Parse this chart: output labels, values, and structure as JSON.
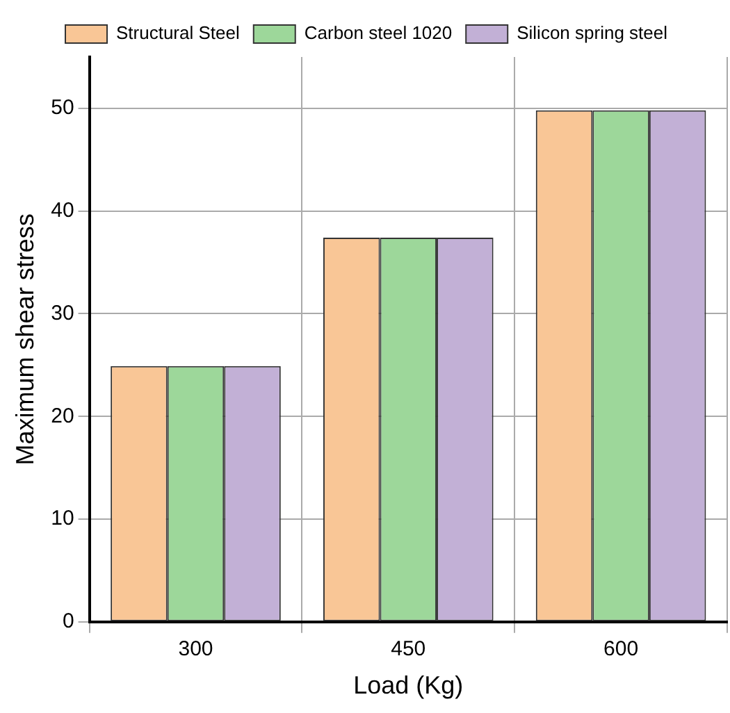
{
  "chart_data": {
    "type": "bar",
    "xlabel": "Load (Kg)",
    "ylabel": "Maximum shear stress",
    "categories": [
      "300",
      "450",
      "600"
    ],
    "series": [
      {
        "name": "Structural Steel",
        "color": "#f9c696",
        "values": [
          24.9,
          37.4,
          49.8
        ]
      },
      {
        "name": "Carbon steel 1020",
        "color": "#9dd79a",
        "values": [
          24.9,
          37.4,
          49.8
        ]
      },
      {
        "name": "Silicon spring steel",
        "color": "#c2b0d6",
        "values": [
          24.9,
          37.4,
          49.8
        ]
      }
    ],
    "ylim": [
      0,
      55
    ],
    "yticks": [
      0,
      10,
      20,
      30,
      40,
      50
    ],
    "grid": true,
    "legend": "top"
  }
}
